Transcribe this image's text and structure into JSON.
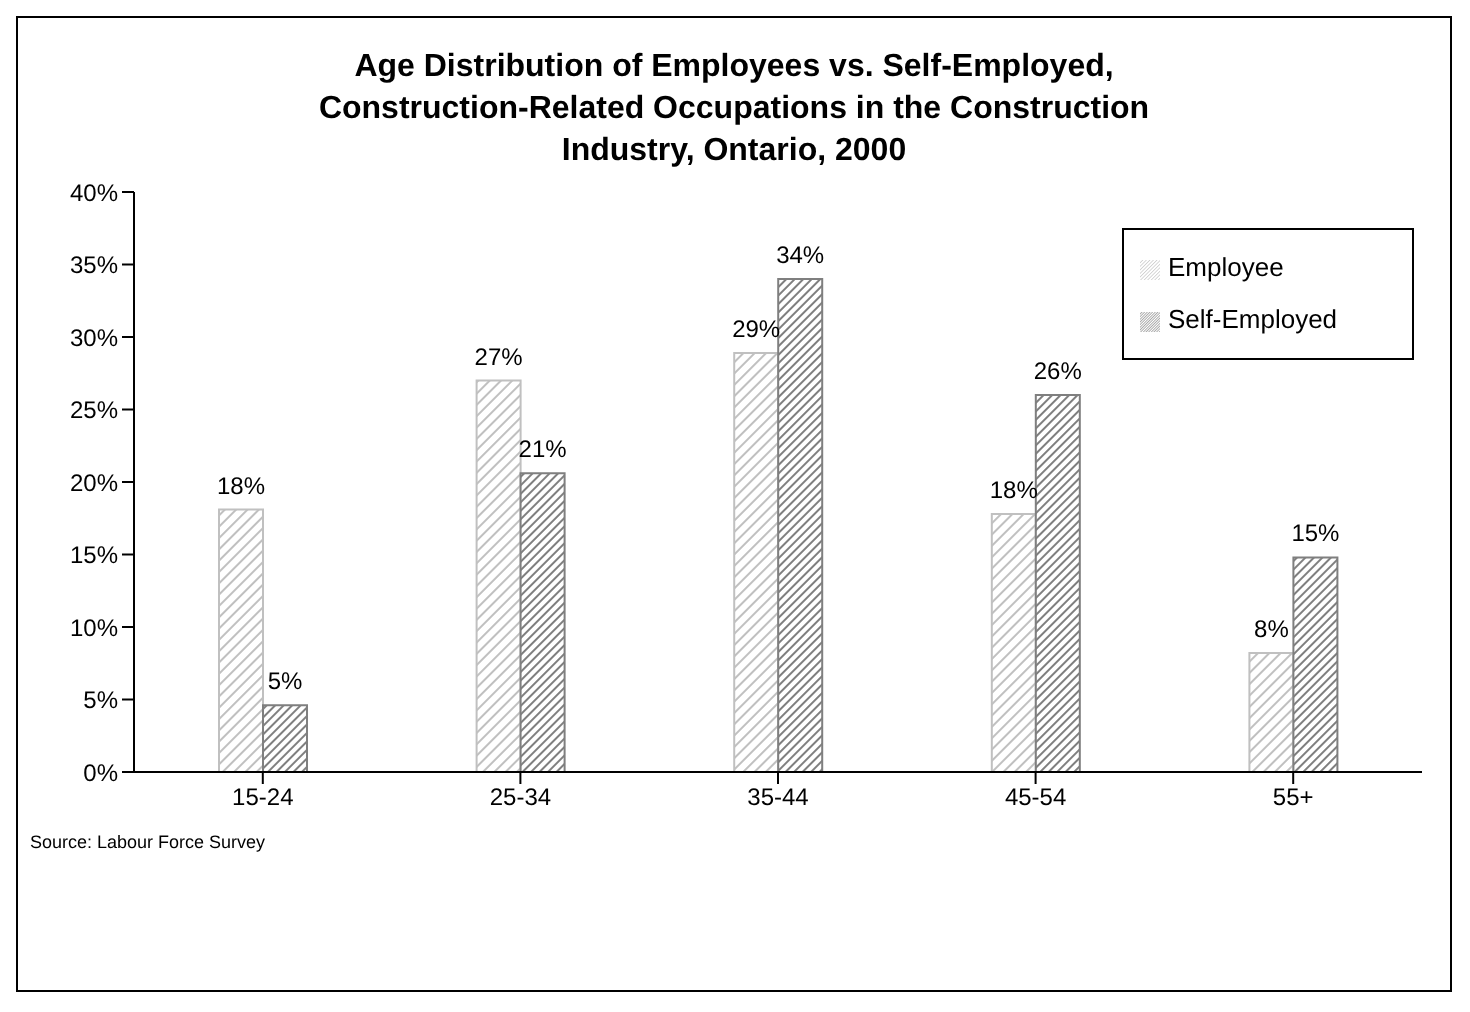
{
  "chart_data": {
    "type": "bar",
    "title": "Age Distribution of Employees vs. Self-Employed, Construction-Related Occupations in the Construction Industry, Ontario, 2000",
    "categories": [
      "15-24",
      "25-34",
      "35-44",
      "45-54",
      "55+"
    ],
    "series": [
      {
        "name": "Employee",
        "color": "#c0c0c0",
        "values": [
          18.1,
          27,
          28.9,
          17.8,
          8.2
        ],
        "value_labels": [
          "18%",
          "27%",
          "29%",
          "18%",
          "8%"
        ]
      },
      {
        "name": "Self-Employed",
        "color": "#7f7f7f",
        "values": [
          4.6,
          20.6,
          34,
          26,
          14.8
        ],
        "value_labels": [
          "5%",
          "21%",
          "34%",
          "26%",
          "15%"
        ]
      }
    ],
    "ylim": [
      0,
      40
    ],
    "yticks": [
      {
        "value": 0,
        "label": "0%"
      },
      {
        "value": 5,
        "label": "5%"
      },
      {
        "value": 10,
        "label": "10%"
      },
      {
        "value": 15,
        "label": "15%"
      },
      {
        "value": 20,
        "label": "20%"
      },
      {
        "value": 25,
        "label": "25%"
      },
      {
        "value": 30,
        "label": "30%"
      },
      {
        "value": 35,
        "label": "35%"
      },
      {
        "value": 40,
        "label": "40%"
      }
    ],
    "grid": false,
    "legend": "top right",
    "annotations": [
      "Source: Labour Force Survey"
    ]
  }
}
